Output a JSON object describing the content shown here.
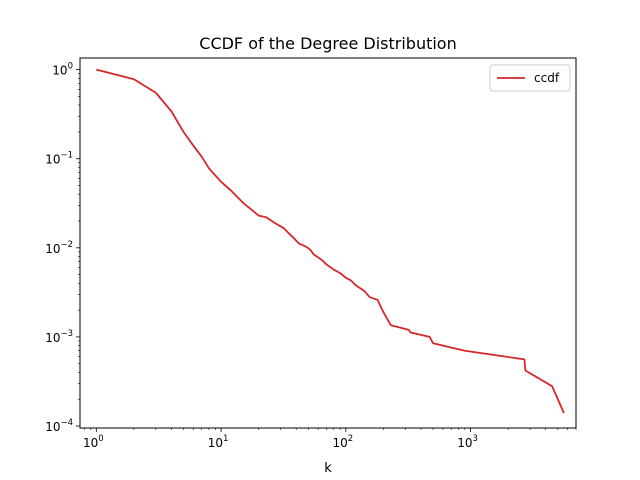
{
  "chart_data": {
    "type": "line",
    "title": "CCDF of the Degree Distribution",
    "xlabel": "k",
    "ylabel": "",
    "xscale": "log",
    "yscale": "log",
    "xlim": [
      0.74,
      7000
    ],
    "ylim": [
      9.5e-05,
      1.35
    ],
    "grid": false,
    "legend_position": "top-right",
    "x_ticks": [
      {
        "value": 1,
        "base": "10",
        "exp": "0"
      },
      {
        "value": 10,
        "base": "10",
        "exp": "1"
      },
      {
        "value": 100,
        "base": "10",
        "exp": "2"
      },
      {
        "value": 1000,
        "base": "10",
        "exp": "3"
      }
    ],
    "y_ticks": [
      {
        "value": 1,
        "base": "10",
        "exp": "0"
      },
      {
        "value": 0.1,
        "base": "10",
        "exp": "−1"
      },
      {
        "value": 0.01,
        "base": "10",
        "exp": "−2"
      },
      {
        "value": 0.001,
        "base": "10",
        "exp": "−3"
      },
      {
        "value": 0.0001,
        "base": "10",
        "exp": "−4"
      }
    ],
    "series": [
      {
        "name": "ccdf",
        "color": "#d62728",
        "points": [
          [
            1,
            1.0
          ],
          [
            2,
            0.78
          ],
          [
            3,
            0.55
          ],
          [
            4,
            0.34
          ],
          [
            5,
            0.2
          ],
          [
            6,
            0.14
          ],
          [
            7,
            0.105
          ],
          [
            8,
            0.078
          ],
          [
            10,
            0.055
          ],
          [
            12,
            0.044
          ],
          [
            15,
            0.032
          ],
          [
            18,
            0.026
          ],
          [
            20,
            0.023
          ],
          [
            23,
            0.022
          ],
          [
            27,
            0.019
          ],
          [
            32,
            0.0165
          ],
          [
            35,
            0.0145
          ],
          [
            38,
            0.013
          ],
          [
            42,
            0.0112
          ],
          [
            48,
            0.0103
          ],
          [
            52,
            0.0095
          ],
          [
            55,
            0.0085
          ],
          [
            60,
            0.0078
          ],
          [
            65,
            0.0072
          ],
          [
            70,
            0.0065
          ],
          [
            80,
            0.0057
          ],
          [
            90,
            0.0052
          ],
          [
            100,
            0.0046
          ],
          [
            110,
            0.0043
          ],
          [
            120,
            0.0038
          ],
          [
            140,
            0.0033
          ],
          [
            155,
            0.0028
          ],
          [
            180,
            0.0026
          ],
          [
            190,
            0.0022
          ],
          [
            200,
            0.0019
          ],
          [
            220,
            0.0015
          ],
          [
            230,
            0.00135
          ],
          [
            320,
            0.0012
          ],
          [
            330,
            0.00112
          ],
          [
            470,
            0.001
          ],
          [
            500,
            0.00085
          ],
          [
            900,
            0.0007
          ],
          [
            2700,
            0.00056
          ],
          [
            2750,
            0.00042
          ],
          [
            4500,
            0.00028
          ],
          [
            5600,
            0.00014
          ]
        ]
      }
    ]
  }
}
